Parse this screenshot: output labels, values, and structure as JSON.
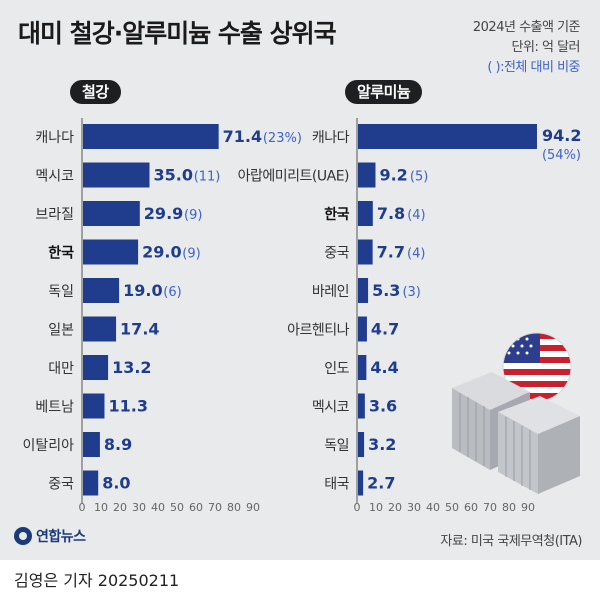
{
  "title": "대미 철강·알루미늄 수출 상위국",
  "meta": {
    "basis": "2024년 수출액 기준",
    "unit": "단위: 억 달러",
    "ratio_note": "( ):전체 대비 비중"
  },
  "source": "자료: 미국 국제무역청(ITA)",
  "logo_text": "연합뉴스",
  "byline": "김영은 기자 20250211",
  "colors": {
    "bar": "#1f3d8c",
    "bar_text": "#1f3d8c",
    "highlight_text": "#111111"
  },
  "chart_data": [
    {
      "type": "bar",
      "orientation": "horizontal",
      "label": "철강",
      "categories": [
        "캐나다",
        "멕시코",
        "브라질",
        "한국",
        "독일",
        "일본",
        "대만",
        "베트남",
        "이탈리아",
        "중국"
      ],
      "values": [
        71.4,
        35.0,
        29.9,
        29.0,
        19.0,
        17.4,
        13.2,
        11.3,
        8.9,
        8.0
      ],
      "value_labels": [
        "71.4",
        "35.0",
        "29.9",
        "29.0",
        "19.0",
        "17.4",
        "13.2",
        "11.3",
        "8.9",
        "8.0"
      ],
      "shares": [
        "(23%)",
        "(11)",
        "(9)",
        "(9)",
        "(6)",
        "",
        "",
        "",
        "",
        ""
      ],
      "highlight": "한국",
      "xlim": [
        0,
        90
      ],
      "ticks": [
        0,
        10,
        20,
        30,
        40,
        50,
        60,
        70,
        80,
        90
      ]
    },
    {
      "type": "bar",
      "orientation": "horizontal",
      "label": "알루미늄",
      "categories": [
        "캐나다",
        "아랍에미리트(UAE)",
        "한국",
        "중국",
        "바레인",
        "아르헨티나",
        "인도",
        "멕시코",
        "독일",
        "태국"
      ],
      "values": [
        94.2,
        9.2,
        7.8,
        7.7,
        5.3,
        4.7,
        4.4,
        3.6,
        3.2,
        2.7
      ],
      "value_labels": [
        "94.2",
        "9.2",
        "7.8",
        "7.7",
        "5.3",
        "4.7",
        "4.4",
        "3.6",
        "3.2",
        "2.7"
      ],
      "shares": [
        "(54%)",
        "(5)",
        "(4)",
        "(4)",
        "(3)",
        "",
        "",
        "",
        "",
        ""
      ],
      "highlight": "한국",
      "xlim": [
        0,
        90
      ],
      "ticks": [
        0,
        10,
        20,
        30,
        40,
        50,
        60,
        70,
        80,
        90
      ]
    }
  ]
}
